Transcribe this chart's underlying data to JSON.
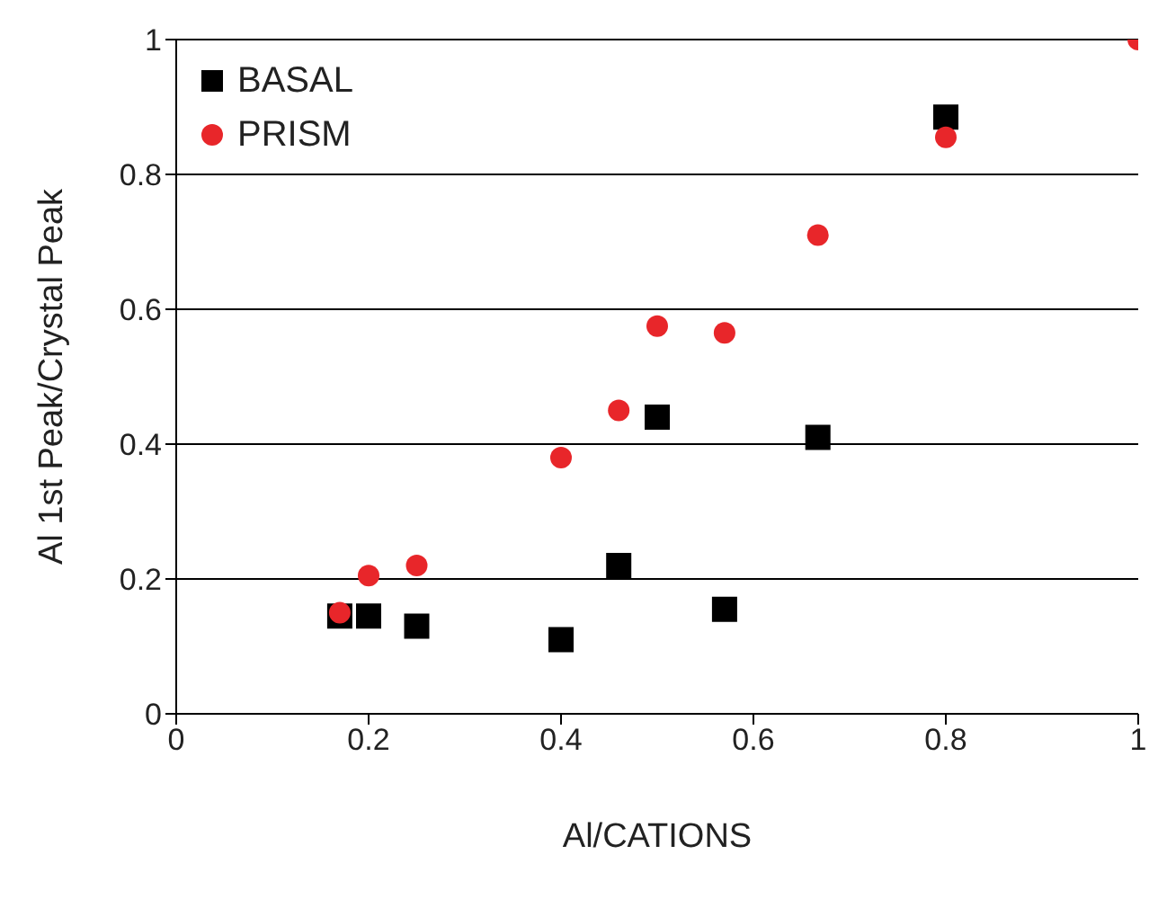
{
  "chart_data": {
    "type": "scatter",
    "xlabel": "Al/CATIONS",
    "ylabel": "Al 1st Peak/Crystal Peak",
    "xlim": [
      0,
      1
    ],
    "xticks": [
      0,
      0.2,
      0.4,
      0.6,
      0.8,
      1
    ],
    "ylim": [
      0,
      1
    ],
    "yticks": [
      0,
      0.2,
      0.4,
      0.6,
      0.8,
      1
    ],
    "grid": "y",
    "legend": "top left",
    "series": [
      {
        "name": "BASAL",
        "color": "#000000",
        "marker": "square",
        "x": [
          0.17,
          0.2,
          0.25,
          0.4,
          0.46,
          0.5,
          0.57,
          0.667,
          0.8
        ],
        "values": [
          0.145,
          0.145,
          0.13,
          0.11,
          0.22,
          0.44,
          0.155,
          0.41,
          0.885
        ]
      },
      {
        "name": "PRISM",
        "color": "#e8262a",
        "marker": "circle",
        "x": [
          0.17,
          0.2,
          0.25,
          0.4,
          0.46,
          0.5,
          0.57,
          0.667,
          0.8,
          1
        ],
        "values": [
          0.15,
          0.205,
          0.22,
          0.38,
          0.45,
          0.575,
          0.565,
          0.71,
          0.855,
          1
        ]
      }
    ]
  }
}
